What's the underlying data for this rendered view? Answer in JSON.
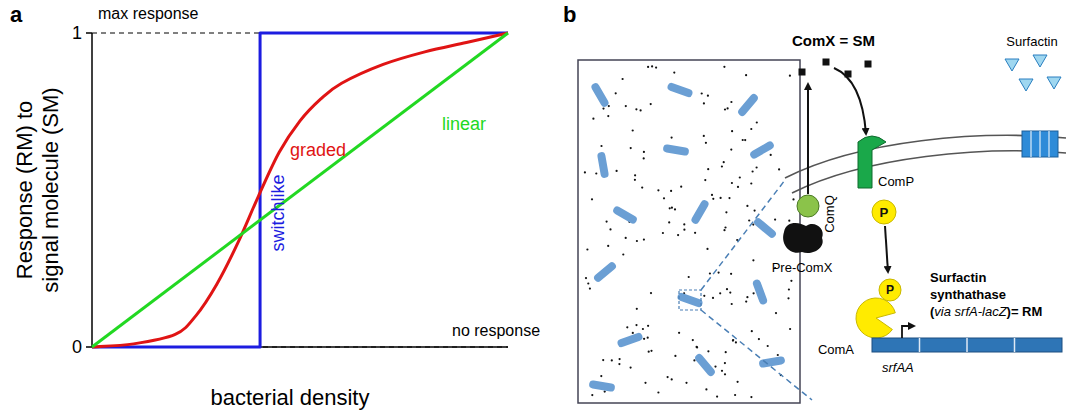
{
  "chart_data": {
    "type": "line",
    "panel_label": "a",
    "x_label": "bacterial density",
    "y_label": "Response (RM) to signal molecule (SM)",
    "xlim": [
      0,
      1
    ],
    "ylim": [
      0,
      1
    ],
    "yticks": [
      0,
      1
    ],
    "tick_labels": "y",
    "annotations": [
      {
        "text": "max response",
        "y": 1
      },
      {
        "text": "no response",
        "y": 0
      }
    ],
    "series": [
      {
        "name": "switchlike",
        "color": "#1c1ce0",
        "x": [
          0,
          0.404,
          0.404,
          1
        ],
        "values": [
          0,
          0,
          1,
          1
        ]
      },
      {
        "name": "graded",
        "color": "#e01414",
        "x": [
          0,
          0.1,
          0.2,
          0.25,
          0.3,
          0.35,
          0.4,
          0.45,
          0.5,
          0.55,
          0.6,
          0.7,
          0.8,
          0.9,
          1
        ],
        "values": [
          0,
          0.01,
          0.04,
          0.1,
          0.2,
          0.33,
          0.48,
          0.62,
          0.72,
          0.79,
          0.84,
          0.9,
          0.94,
          0.97,
          1
        ]
      },
      {
        "name": "linear",
        "color": "#22d822",
        "x": [
          0,
          1
        ],
        "values": [
          0,
          1
        ]
      }
    ]
  },
  "diagram": {
    "panel_label": "b",
    "comx_label": "ComX = SM",
    "surfactin_label": "Surfactin",
    "comq_label": "ComQ",
    "comp_label": "ComP",
    "precomx_label": "Pre-ComX",
    "phospho_label": "P",
    "synthase_lines": [
      "Surfactin",
      "synthathase",
      "(via srfA-lacZ)= RM"
    ],
    "coma_label": "ComA",
    "gene_label": "srfAA"
  }
}
